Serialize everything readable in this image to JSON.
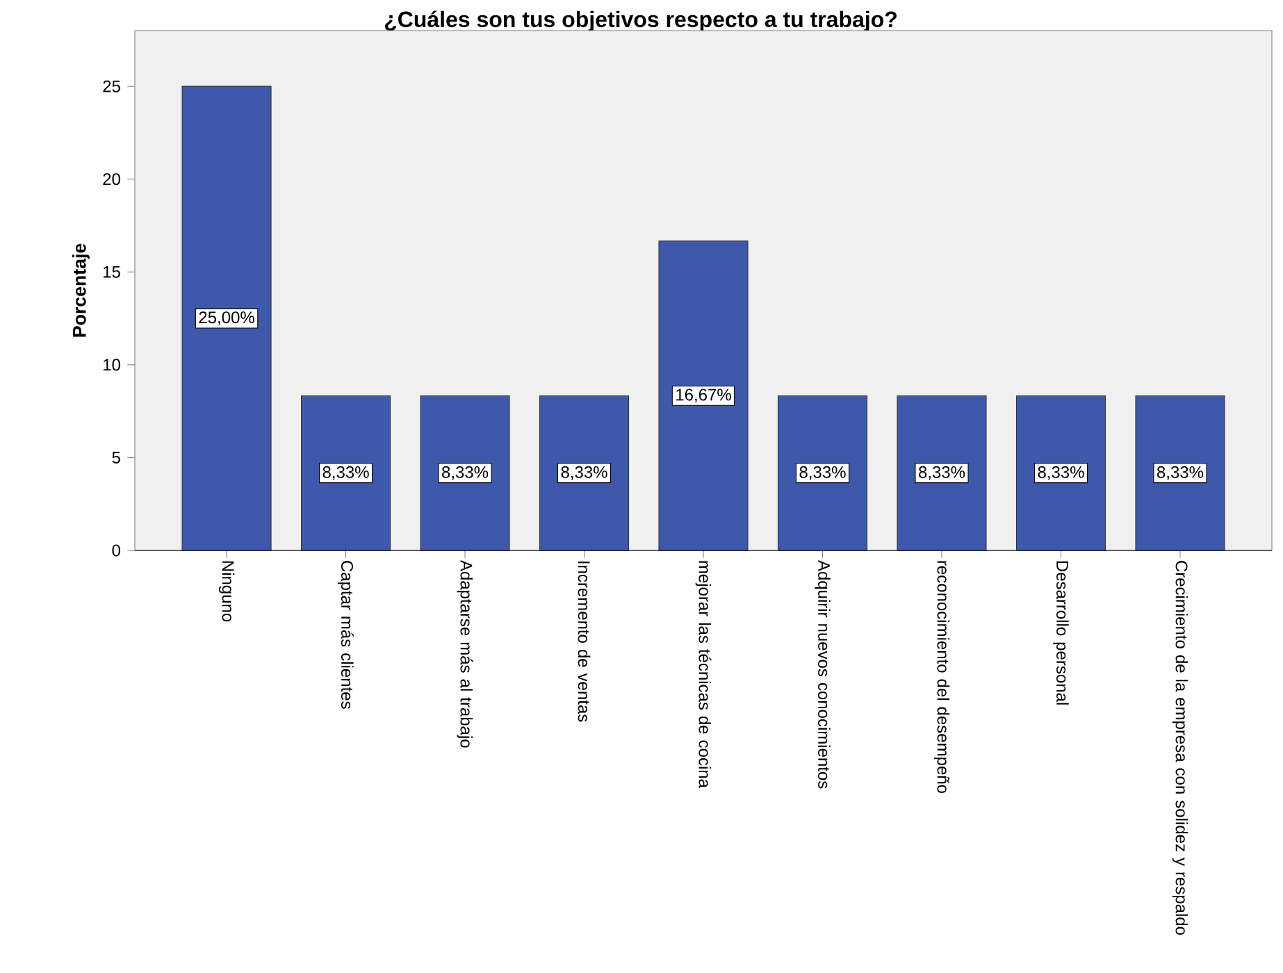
{
  "chart_data": {
    "type": "bar",
    "title": "¿Cuáles son tus objetivos respecto a tu trabajo?",
    "ylabel": "Porcentaje",
    "categories": [
      "Ninguno",
      "Captar más clientes",
      "Adaptarse más al trabajo",
      "Incremento de ventas",
      "mejorar las técnicas de cocina",
      "Adquirir nuevos conocimientos",
      "reconocimiento del desempeño",
      "Desarrollo personal",
      "Crecimiento de la empresa con solidez y respaldo"
    ],
    "values": [
      25,
      8.33,
      8.33,
      8.33,
      16.67,
      8.33,
      8.33,
      8.33,
      8.33
    ],
    "value_labels": [
      "25,00%",
      "8,33%",
      "8,33%",
      "8,33%",
      "16,67%",
      "8,33%",
      "8,33%",
      "8,33%",
      "8,33%"
    ],
    "color": "#3e58ac",
    "ylim": [
      0,
      28
    ],
    "yticks": [
      0,
      5,
      10,
      15,
      20,
      25
    ]
  }
}
